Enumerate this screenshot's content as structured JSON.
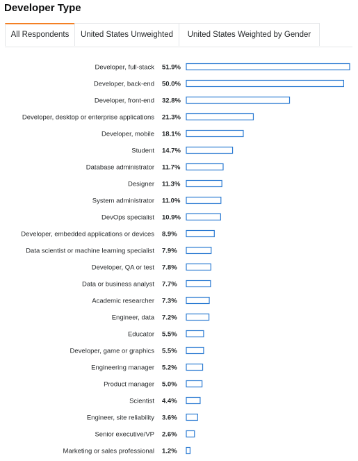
{
  "title": "Developer Type",
  "tabs": [
    {
      "label": "All Respondents",
      "active": true
    },
    {
      "label": "United States Unweighted",
      "active": false
    },
    {
      "label": "United States Weighted by Gender",
      "active": false
    }
  ],
  "colors": {
    "bar_stroke": "#2a7ad2",
    "tab_active_accent": "#f48024"
  },
  "chart_data": {
    "type": "bar",
    "orientation": "horizontal",
    "categories": [
      "Developer, full-stack",
      "Developer, back-end",
      "Developer, front-end",
      "Developer, desktop or enterprise applications",
      "Developer, mobile",
      "Student",
      "Database administrator",
      "Designer",
      "System administrator",
      "DevOps specialist",
      "Developer, embedded applications or devices",
      "Data scientist or machine learning specialist",
      "Developer, QA or test",
      "Data or business analyst",
      "Academic researcher",
      "Engineer, data",
      "Educator",
      "Developer, game or graphics",
      "Engineering manager",
      "Product manager",
      "Scientist",
      "Engineer, site reliability",
      "Senior executive/VP",
      "Marketing or sales professional"
    ],
    "values": [
      51.9,
      50.0,
      32.8,
      21.3,
      18.1,
      14.7,
      11.7,
      11.3,
      11.0,
      10.9,
      8.9,
      7.9,
      7.8,
      7.7,
      7.3,
      7.2,
      5.5,
      5.5,
      5.2,
      5.0,
      4.4,
      3.6,
      2.6,
      1.2
    ],
    "value_labels": [
      "51.9%",
      "50.0%",
      "32.8%",
      "21.3%",
      "18.1%",
      "14.7%",
      "11.7%",
      "11.3%",
      "11.0%",
      "10.9%",
      "8.9%",
      "7.9%",
      "7.8%",
      "7.7%",
      "7.3%",
      "7.2%",
      "5.5%",
      "5.5%",
      "5.2%",
      "5.0%",
      "4.4%",
      "3.6%",
      "2.6%",
      "1.2%"
    ],
    "unit": "%",
    "xlim": [
      0,
      51.9
    ],
    "grid": false,
    "legend": "none"
  }
}
